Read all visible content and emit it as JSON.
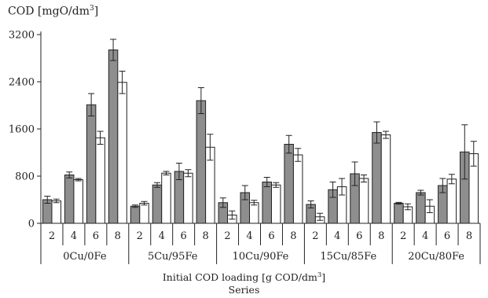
{
  "chart_data": {
    "type": "bar",
    "ylabel_text": "COD [mgO/dm",
    "ylabel_sup": "3",
    "ylabel_end": "]",
    "xlabel_text": "Initial COD loading [g COD/dm",
    "xlabel_sup": "3",
    "xlabel_end": "]",
    "xlabel_line2": "Series",
    "ylim": [
      0,
      3200
    ],
    "yticks": [
      0,
      800,
      1600,
      2400,
      3200
    ],
    "groups": [
      {
        "name": "0Cu/0Fe",
        "loadings": [
          "2",
          "4",
          "6",
          "8"
        ],
        "grey": [
          {
            "v": 400,
            "e": 60
          },
          {
            "v": 820,
            "e": 50
          },
          {
            "v": 2010,
            "e": 190
          },
          {
            "v": 2940,
            "e": 180
          }
        ],
        "white": [
          {
            "v": 380,
            "e": 30
          },
          {
            "v": 740,
            "e": 20
          },
          {
            "v": 1450,
            "e": 110
          },
          {
            "v": 2390,
            "e": 190
          }
        ]
      },
      {
        "name": "5Cu/95Fe",
        "loadings": [
          "2",
          "4",
          "6",
          "8"
        ],
        "grey": [
          {
            "v": 290,
            "e": 20
          },
          {
            "v": 650,
            "e": 40
          },
          {
            "v": 880,
            "e": 140
          },
          {
            "v": 2080,
            "e": 220
          }
        ],
        "white": [
          {
            "v": 340,
            "e": 30
          },
          {
            "v": 850,
            "e": 30
          },
          {
            "v": 850,
            "e": 60
          },
          {
            "v": 1290,
            "e": 220
          }
        ]
      },
      {
        "name": "10Cu/90Fe",
        "loadings": [
          "2",
          "4",
          "6",
          "8"
        ],
        "grey": [
          {
            "v": 350,
            "e": 80
          },
          {
            "v": 520,
            "e": 120
          },
          {
            "v": 700,
            "e": 80
          },
          {
            "v": 1340,
            "e": 150
          }
        ],
        "white": [
          {
            "v": 140,
            "e": 70
          },
          {
            "v": 350,
            "e": 40
          },
          {
            "v": 650,
            "e": 40
          },
          {
            "v": 1160,
            "e": 110
          }
        ]
      },
      {
        "name": "15Cu/85Fe",
        "loadings": [
          "2",
          "4",
          "6",
          "8"
        ],
        "grey": [
          {
            "v": 320,
            "e": 60
          },
          {
            "v": 570,
            "e": 130
          },
          {
            "v": 840,
            "e": 200
          },
          {
            "v": 1540,
            "e": 180
          }
        ],
        "white": [
          {
            "v": 110,
            "e": 60
          },
          {
            "v": 620,
            "e": 140
          },
          {
            "v": 760,
            "e": 60
          },
          {
            "v": 1500,
            "e": 60
          }
        ]
      },
      {
        "name": "20Cu/80Fe",
        "loadings": [
          "2",
          "4",
          "6",
          "8"
        ],
        "grey": [
          {
            "v": 340,
            "e": 15
          },
          {
            "v": 520,
            "e": 40
          },
          {
            "v": 640,
            "e": 120
          },
          {
            "v": 1210,
            "e": 460
          }
        ],
        "white": [
          {
            "v": 280,
            "e": 50
          },
          {
            "v": 290,
            "e": 110
          },
          {
            "v": 750,
            "e": 80
          },
          {
            "v": 1180,
            "e": 210
          }
        ]
      }
    ],
    "colors": {
      "grey": "#8e8e8e",
      "white": "#ffffff",
      "stroke": "#222222"
    }
  }
}
